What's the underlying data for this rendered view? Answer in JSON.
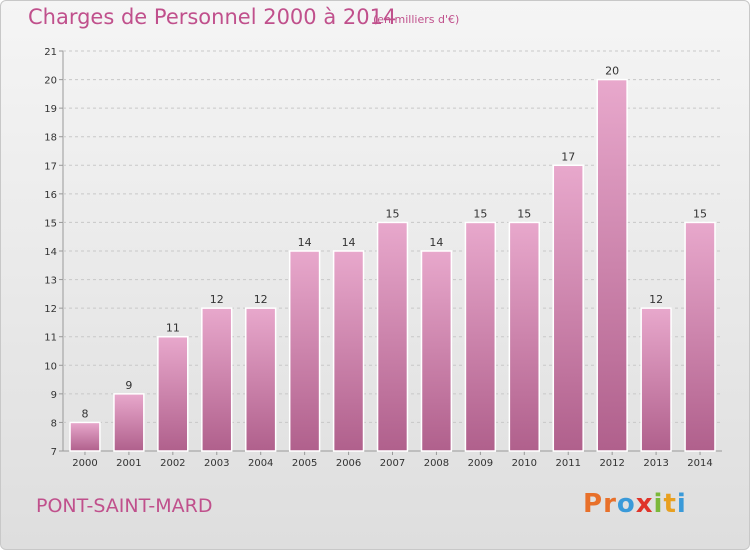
{
  "header": {
    "title": "Charges de Personnel 2000 à 2014",
    "subtitle": "(en milliers d'€)"
  },
  "footer": {
    "commune": "PONT-SAINT-MARD",
    "logo": [
      "P",
      "r",
      "o",
      "x",
      "i",
      "t",
      "i"
    ]
  },
  "colors": {
    "accent": "#c0508c",
    "bar_top": "#e8a8cc",
    "bar_bottom": "#b0608c",
    "logo": [
      "#e8702a",
      "#e8702a",
      "#3a9ad9",
      "#e0342a",
      "#7bb83a",
      "#e8a020",
      "#3a9ad9"
    ]
  },
  "chart_data": {
    "type": "bar",
    "categories": [
      "2000",
      "2001",
      "2002",
      "2003",
      "2004",
      "2005",
      "2006",
      "2007",
      "2008",
      "2009",
      "2010",
      "2011",
      "2012",
      "2013",
      "2014"
    ],
    "values": [
      8,
      9,
      11,
      12,
      12,
      14,
      14,
      15,
      14,
      15,
      15,
      17,
      20,
      12,
      15
    ],
    "yticks": [
      "7",
      "8",
      "9",
      "10",
      "11",
      "12",
      "13",
      "14",
      "15",
      "16",
      "17",
      "18",
      "19",
      "20",
      "21"
    ],
    "ylim": [
      7,
      21
    ],
    "grid": true
  }
}
